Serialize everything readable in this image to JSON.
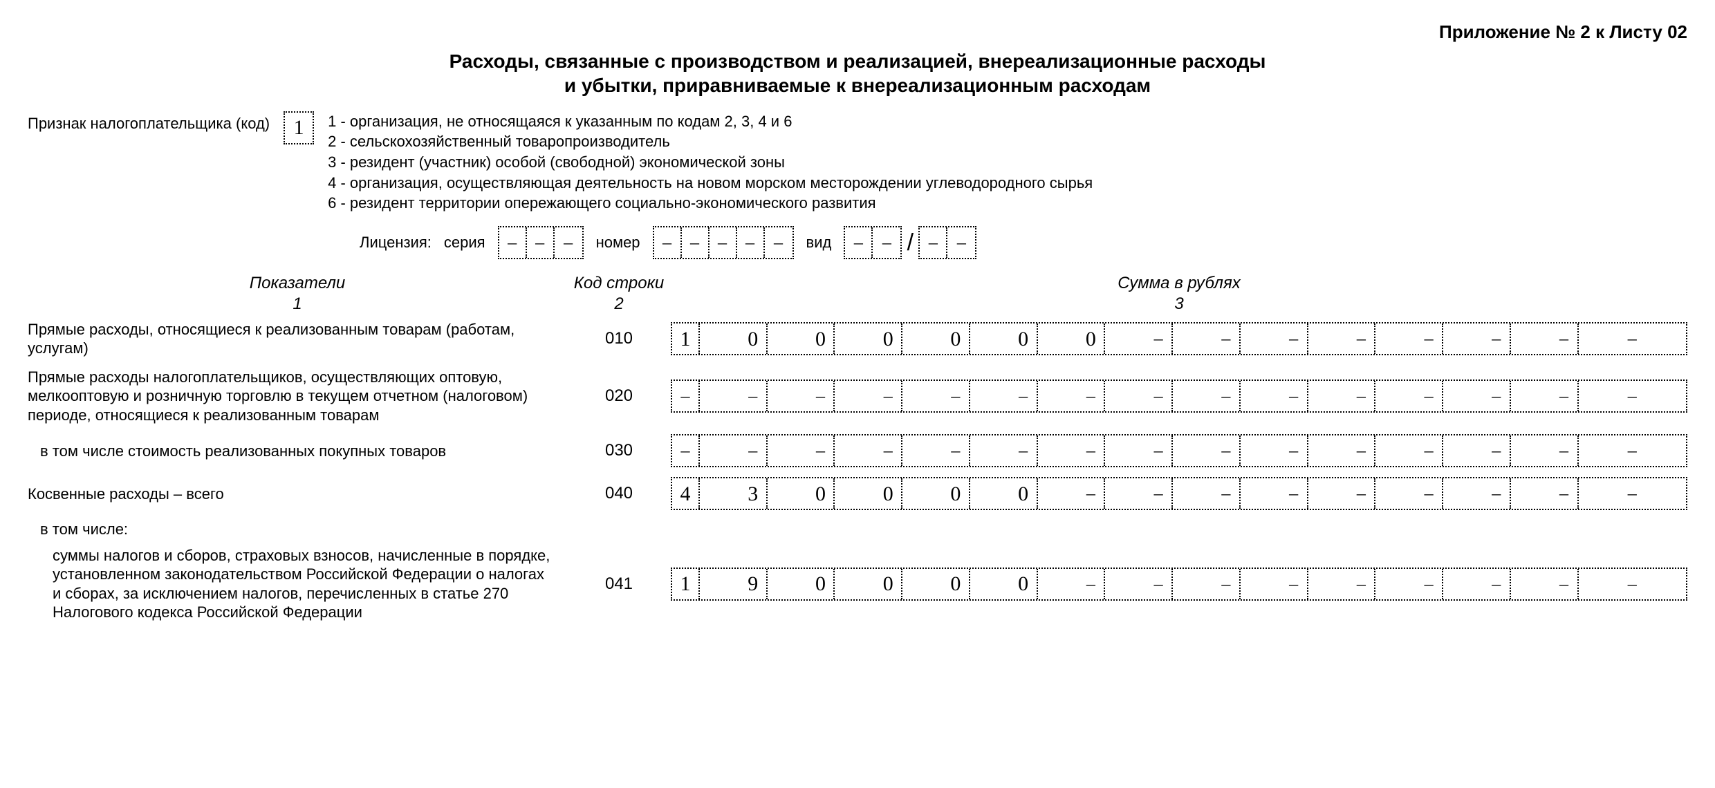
{
  "appendix": "Приложение № 2 к Листу 02",
  "title_line1": "Расходы, связанные с производством и реализацией, внереализационные расходы",
  "title_line2": "и убытки, приравниваемые к внереализационным расходам",
  "taxpayer": {
    "label": "Признак налогоплательщика (код)",
    "value": "1",
    "legend": [
      "1 - организация, не относящаяся к указанным по кодам 2, 3, 4 и 6",
      "2 - сельскохозяйственный товаропроизводитель",
      "3 - резидент (участник) особой (свободной) экономической зоны",
      "4 - организация, осуществляющая деятельность на новом морском месторождении углеводородного сырья",
      "6 - резидент территории опережающего социально-экономического развития"
    ]
  },
  "license": {
    "label": "Лицензия:",
    "series_label": "серия",
    "series_cells": 3,
    "number_label": "номер",
    "number_cells": 5,
    "type_label": "вид",
    "type_cells_a": 2,
    "type_cells_b": 2
  },
  "columns": {
    "c1": "Показатели",
    "n1": "1",
    "c2": "Код строки",
    "n2": "2",
    "c3": "Сумма в рублях",
    "n3": "3"
  },
  "amount_width": 15,
  "rows": [
    {
      "desc": "Прямые расходы, относящиеся к реализованным товарам (работам, услугам)",
      "code": "010",
      "value": "1000000",
      "indent": 0
    },
    {
      "desc": "Прямые расходы налогоплательщиков, осуществляющих оптовую, мелкооптовую и розничную торговлю в текущем отчетном (налоговом) периоде, относящиеся к реализованным товарам",
      "code": "020",
      "value": "",
      "indent": 0
    },
    {
      "desc": "в том числе стоимость реализованных покупных товаров",
      "code": "030",
      "value": "",
      "indent": 1
    },
    {
      "desc": "Косвенные расходы – всего",
      "code": "040",
      "value": "430000",
      "indent": 0
    }
  ],
  "subhead": "в том числе:",
  "row041": {
    "desc": "суммы налогов и сборов, страховых взносов, начисленные в порядке, установленном законодательством Российской Федерации о налогах и сборах, за исключением налогов, перечисленных в статье 270 Налогового кодекса Российской Федерации",
    "code": "041",
    "value": "190000",
    "indent": 2
  }
}
